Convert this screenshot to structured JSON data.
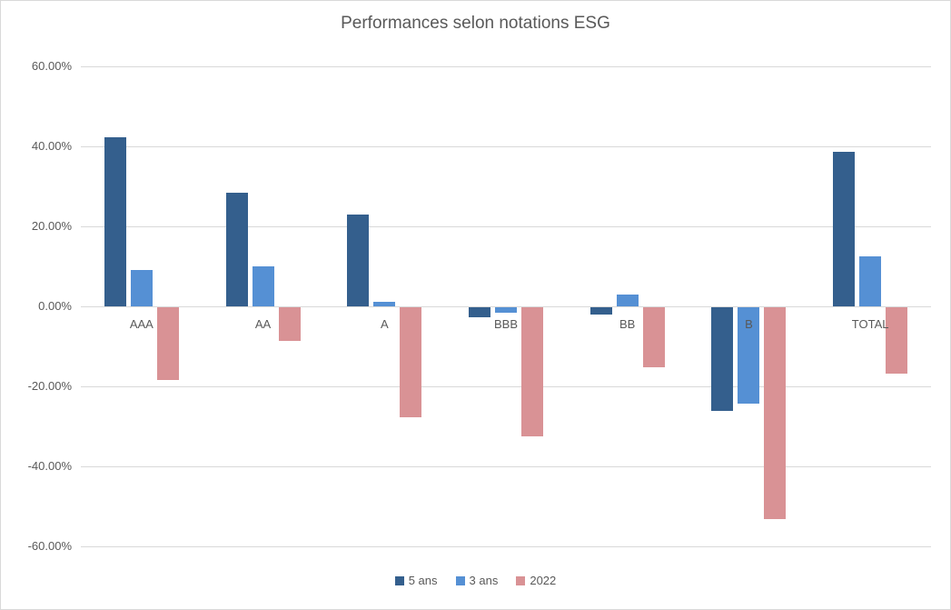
{
  "chart_data": {
    "type": "bar",
    "title": "Performances selon notations ESG",
    "categories": [
      "AAA",
      "AA",
      "A",
      "BBB",
      "BB",
      "B",
      "TOTAL"
    ],
    "series": [
      {
        "name": "5 ans",
        "color": "#345F8D",
        "values": [
          42.3,
          28.4,
          23.0,
          -2.4,
          -1.8,
          -26.0,
          38.6
        ]
      },
      {
        "name": "3 ans",
        "color": "#5590D4",
        "values": [
          9.2,
          9.9,
          1.2,
          -1.4,
          3.0,
          -24.0,
          12.5
        ]
      },
      {
        "name": "2022",
        "color": "#D99295",
        "values": [
          -18.1,
          -8.5,
          -27.4,
          -32.2,
          -15.0,
          -53.0,
          -16.5
        ]
      }
    ],
    "ylim": [
      -60,
      60
    ],
    "yticks": [
      {
        "value": 60,
        "label": "60.00%"
      },
      {
        "value": 40,
        "label": "40.00%"
      },
      {
        "value": 20,
        "label": "20.00%"
      },
      {
        "value": 0,
        "label": "0.00%"
      },
      {
        "value": -20,
        "label": "-20.00%"
      },
      {
        "value": -40,
        "label": "-40.00%"
      },
      {
        "value": -60,
        "label": "-60.00%"
      }
    ],
    "grid": true,
    "legend_position": "bottom",
    "colors": {
      "title_text": "#595959",
      "axis_text": "#595959",
      "gridline": "#D9D9D9",
      "background": "#FFFFFF",
      "border": "#D9D9D9"
    }
  }
}
